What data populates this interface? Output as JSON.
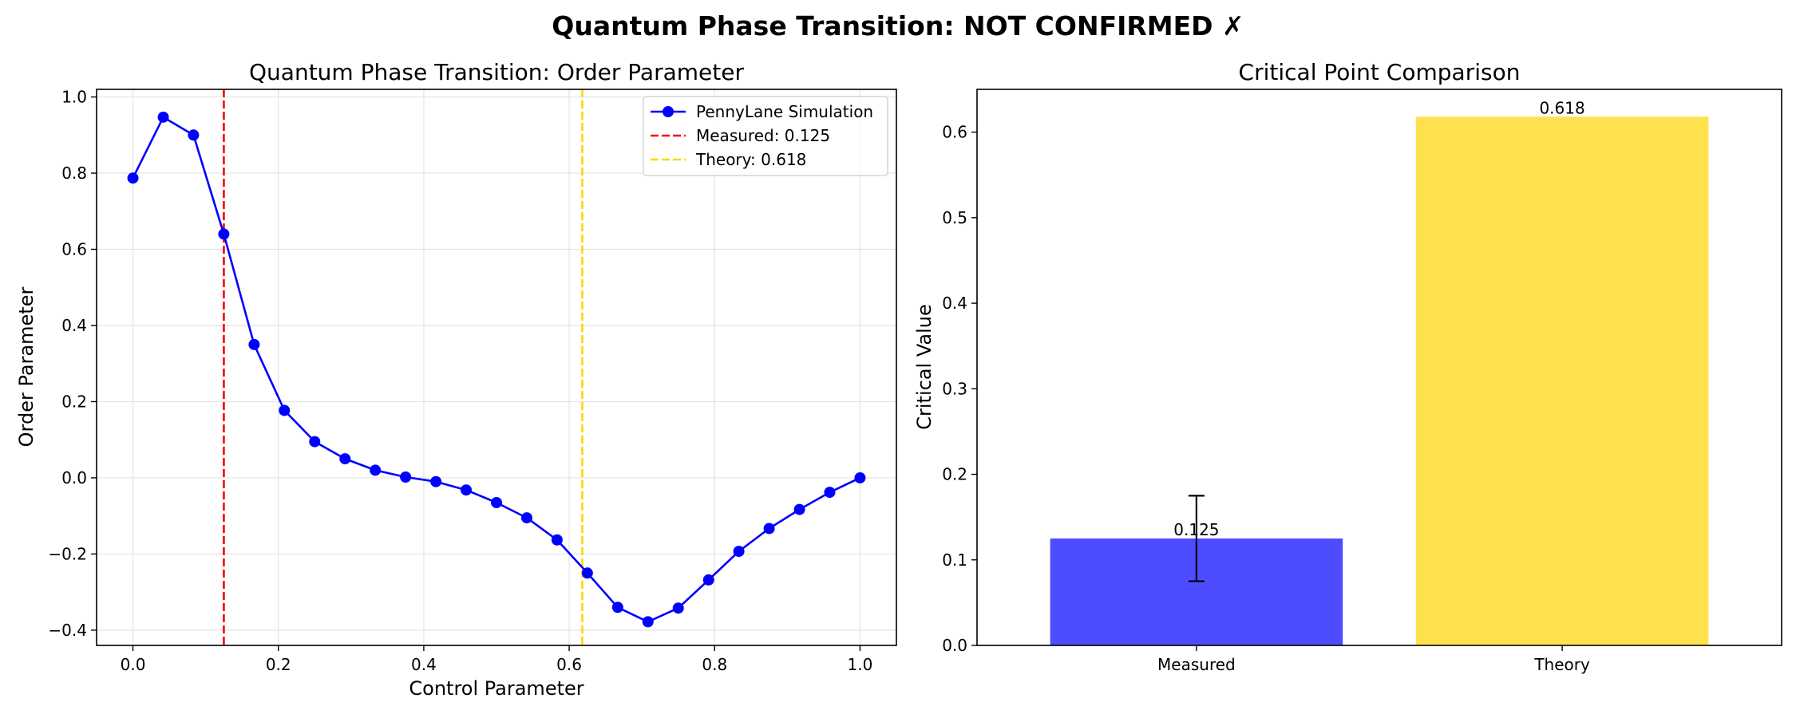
{
  "figure": {
    "suptitle": "Quantum Phase Transition: NOT CONFIRMED ✗"
  },
  "chart_data": [
    {
      "type": "line",
      "title": "Quantum Phase Transition: Order Parameter",
      "xlabel": "Control Parameter",
      "ylabel": "Order Parameter",
      "xlim": [
        -0.05,
        1.05
      ],
      "ylim": [
        -0.44,
        1.02
      ],
      "xticks": [
        0.0,
        0.2,
        0.4,
        0.6,
        0.8,
        1.0
      ],
      "xtick_labels": [
        "0.0",
        "0.2",
        "0.4",
        "0.6",
        "0.8",
        "1.0"
      ],
      "yticks": [
        -0.4,
        -0.2,
        0.0,
        0.2,
        0.4,
        0.6,
        0.8,
        1.0
      ],
      "ytick_labels": [
        "−0.4",
        "−0.2",
        "0.0",
        "0.2",
        "0.4",
        "0.6",
        "0.8",
        "1.0"
      ],
      "grid": true,
      "legend_position": "top-right",
      "series": [
        {
          "name": "PennyLane Simulation",
          "color": "#0000ff",
          "marker": "circle",
          "x": [
            0.0,
            0.0417,
            0.0833,
            0.125,
            0.1667,
            0.2083,
            0.25,
            0.2917,
            0.3333,
            0.375,
            0.4167,
            0.4583,
            0.5,
            0.5417,
            0.5833,
            0.625,
            0.6667,
            0.7083,
            0.75,
            0.7917,
            0.8333,
            0.875,
            0.9167,
            0.9583,
            1.0
          ],
          "y": [
            0.787,
            0.947,
            0.9,
            0.64,
            0.35,
            0.177,
            0.095,
            0.05,
            0.02,
            0.002,
            -0.01,
            -0.032,
            -0.065,
            -0.105,
            -0.163,
            -0.25,
            -0.34,
            -0.378,
            -0.342,
            -0.268,
            -0.193,
            -0.133,
            -0.083,
            -0.038,
            0.0
          ]
        }
      ],
      "vlines": [
        {
          "name": "Measured: 0.125",
          "x": 0.125,
          "color": "#ff0000",
          "style": "dashed"
        },
        {
          "name": "Theory: 0.618",
          "x": 0.618,
          "color": "#ffd700",
          "style": "dashed"
        }
      ]
    },
    {
      "type": "bar",
      "title": "Critical Point Comparison",
      "xlabel": "",
      "ylabel": "Critical Value",
      "ylim": [
        0,
        0.65
      ],
      "yticks": [
        0.0,
        0.1,
        0.2,
        0.3,
        0.4,
        0.5,
        0.6
      ],
      "ytick_labels": [
        "0.0",
        "0.1",
        "0.2",
        "0.3",
        "0.4",
        "0.5",
        "0.6"
      ],
      "grid": false,
      "categories": [
        "Measured",
        "Theory"
      ],
      "values": [
        0.125,
        0.618
      ],
      "value_labels": [
        "0.125",
        "0.618"
      ],
      "errors": [
        0.05,
        0
      ],
      "colors": [
        "#4d4dff",
        "#ffe14d"
      ]
    }
  ]
}
